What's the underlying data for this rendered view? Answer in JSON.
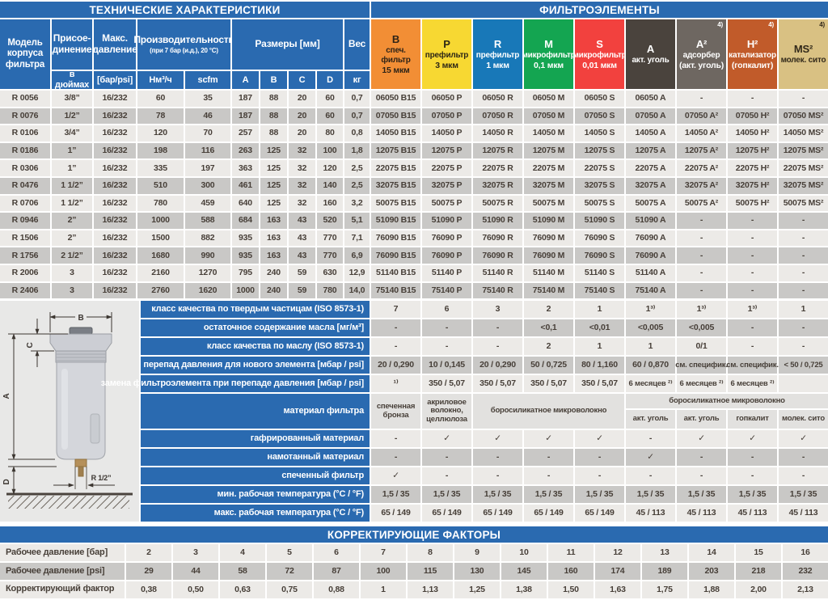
{
  "banners": {
    "tech": "ТЕХНИЧЕСКИЕ ХАРАКТЕРИСТИКИ",
    "elements": "ФИЛЬТРОЭЛЕМЕНТЫ",
    "correction": "КОРРЕКТИРУЮЩИЕ ФАКТОРЫ"
  },
  "colors": {
    "accent_blue": "#2a6ab0",
    "row_light": "#eceae7",
    "row_dark": "#c9c8c6",
    "row_material": "#e2e1df",
    "ink": "#443c34"
  },
  "tech_header": {
    "model": "Модель корпуса фильтра",
    "connection": "Присое- динение",
    "connection_sub": "в дюймах",
    "pressure": "Макс. давление",
    "pressure_sub": "[бар/psi]",
    "capacity": "Производительность",
    "capacity_note": "(при 7 бар (и.д.), 20 °C)",
    "capacity_sub1": "Нм³/ч",
    "capacity_sub2": "scfm",
    "dimensions": "Размеры [мм]",
    "dim_sub_a": "A",
    "dim_sub_b": "B",
    "dim_sub_c": "C",
    "dim_sub_d": "D",
    "weight": "Вес",
    "weight_sub": "кг"
  },
  "element_columns": [
    {
      "code": "B",
      "line1": "спеч. фильтр",
      "line2": "15 мкм",
      "note": "",
      "bg": "#f28e35",
      "fg": "#2e2317"
    },
    {
      "code": "P",
      "line1": "префильтр",
      "line2": "3 мкм",
      "note": "",
      "bg": "#f7d832",
      "fg": "#2e2716"
    },
    {
      "code": "R",
      "line1": "префильтр",
      "line2": "1 мкм",
      "note": "",
      "bg": "#1878b8",
      "fg": "#ffffff"
    },
    {
      "code": "M",
      "line1": "микрофильтр",
      "line2": "0,1 мкм",
      "note": "",
      "bg": "#14a551",
      "fg": "#ffffff"
    },
    {
      "code": "S",
      "line1": "микрофильтр",
      "line2": "0,01 мкм",
      "note": "",
      "bg": "#f2413e",
      "fg": "#ffffff"
    },
    {
      "code": "A",
      "line1": "акт. уголь",
      "line2": "",
      "note": "",
      "bg": "#4a433d",
      "fg": "#ffffff"
    },
    {
      "code": "A²",
      "line1": "адсорбер",
      "line2": "(акт. уголь)",
      "note": "4)",
      "bg": "#6e6761",
      "fg": "#ffffff"
    },
    {
      "code": "H²",
      "line1": "катализатор",
      "line2": "(гопкалит)",
      "note": "4)",
      "bg": "#c15b2a",
      "fg": "#ffffff"
    },
    {
      "code": "MS²",
      "line1": "молек. сито",
      "line2": "",
      "note": "4)",
      "bg": "#d9c183",
      "fg": "#32291a"
    }
  ],
  "rows": [
    {
      "model": "R 0056",
      "specs": [
        "3/8”",
        "16/232",
        "60",
        "35",
        "187",
        "88",
        "20",
        "60",
        "0,7"
      ],
      "codes": [
        "06050 B15",
        "06050 P",
        "06050 R",
        "06050 M",
        "06050 S",
        "06050 A",
        "-",
        "-",
        "-"
      ]
    },
    {
      "model": "R 0076",
      "specs": [
        "1/2”",
        "16/232",
        "78",
        "46",
        "187",
        "88",
        "20",
        "60",
        "0,7"
      ],
      "codes": [
        "07050 B15",
        "07050 P",
        "07050 R",
        "07050 M",
        "07050 S",
        "07050 A",
        "07050 A²",
        "07050 H²",
        "07050 MS²"
      ]
    },
    {
      "model": "R 0106",
      "specs": [
        "3/4”",
        "16/232",
        "120",
        "70",
        "257",
        "88",
        "20",
        "80",
        "0,8"
      ],
      "codes": [
        "14050 B15",
        "14050 P",
        "14050 R",
        "14050 M",
        "14050 S",
        "14050 A",
        "14050 A²",
        "14050 H²",
        "14050 MS²"
      ]
    },
    {
      "model": "R 0186",
      "specs": [
        "1”",
        "16/232",
        "198",
        "116",
        "263",
        "125",
        "32",
        "100",
        "1,8"
      ],
      "codes": [
        "12075 B15",
        "12075 P",
        "12075 R",
        "12075 M",
        "12075 S",
        "12075 A",
        "12075 A²",
        "12075 H²",
        "12075 MS²"
      ]
    },
    {
      "model": "R 0306",
      "specs": [
        "1”",
        "16/232",
        "335",
        "197",
        "363",
        "125",
        "32",
        "120",
        "2,5"
      ],
      "codes": [
        "22075 B15",
        "22075 P",
        "22075 R",
        "22075 M",
        "22075 S",
        "22075 A",
        "22075 A²",
        "22075 H²",
        "22075 MS²"
      ]
    },
    {
      "model": "R 0476",
      "specs": [
        "1 1/2”",
        "16/232",
        "510",
        "300",
        "461",
        "125",
        "32",
        "140",
        "2,5"
      ],
      "codes": [
        "32075 B15",
        "32075 P",
        "32075 R",
        "32075 M",
        "32075 S",
        "32075 A",
        "32075 A²",
        "32075 H²",
        "32075 MS²"
      ]
    },
    {
      "model": "R 0706",
      "specs": [
        "1 1/2”",
        "16/232",
        "780",
        "459",
        "640",
        "125",
        "32",
        "160",
        "3,2"
      ],
      "codes": [
        "50075 B15",
        "50075 P",
        "50075 R",
        "50075 M",
        "50075 S",
        "50075 A",
        "50075 A²",
        "50075 H²",
        "50075 MS²"
      ]
    },
    {
      "model": "R 0946",
      "specs": [
        "2”",
        "16/232",
        "1000",
        "588",
        "684",
        "163",
        "43",
        "520",
        "5,1"
      ],
      "codes": [
        "51090 B15",
        "51090 P",
        "51090 R",
        "51090 M",
        "51090 S",
        "51090 A",
        "-",
        "-",
        "-"
      ]
    },
    {
      "model": "R 1506",
      "specs": [
        "2”",
        "16/232",
        "1500",
        "882",
        "935",
        "163",
        "43",
        "770",
        "7,1"
      ],
      "codes": [
        "76090 B15",
        "76090 P",
        "76090 R",
        "76090 M",
        "76090 S",
        "76090 A",
        "-",
        "-",
        "-"
      ]
    },
    {
      "model": "R 1756",
      "specs": [
        "2 1/2”",
        "16/232",
        "1680",
        "990",
        "935",
        "163",
        "43",
        "770",
        "6,9"
      ],
      "codes": [
        "76090 B15",
        "76090 P",
        "76090 R",
        "76090 M",
        "76090 S",
        "76090 A",
        "-",
        "-",
        "-"
      ]
    },
    {
      "model": "R 2006",
      "specs": [
        "3",
        "16/232",
        "2160",
        "1270",
        "795",
        "240",
        "59",
        "630",
        "12,9"
      ],
      "codes": [
        "51140 B15",
        "51140 P",
        "51140 R",
        "51140 M",
        "51140 S",
        "51140 A",
        "-",
        "-",
        "-"
      ]
    },
    {
      "model": "R 2406",
      "specs": [
        "3",
        "16/232",
        "2760",
        "1620",
        "1000",
        "240",
        "59",
        "780",
        "14,0"
      ],
      "codes": [
        "75140 B15",
        "75140 P",
        "75140 R",
        "75140 M",
        "75140 S",
        "75140 A",
        "-",
        "-",
        "-"
      ]
    }
  ],
  "properties": [
    {
      "label": "класс качества по твердым частицам (ISO 8573-1)",
      "values": [
        "7",
        "6",
        "3",
        "2",
        "1",
        "1³⁾",
        "1³⁾",
        "1³⁾",
        "1"
      ]
    },
    {
      "label": "остаточное содержание масла [мг/м³]",
      "values": [
        "-",
        "-",
        "-",
        "<0,1",
        "<0,01",
        "<0,005",
        "<0,005",
        "-",
        "-"
      ]
    },
    {
      "label": "класс качества по маслу (ISO 8573-1)",
      "values": [
        "-",
        "-",
        "-",
        "2",
        "1",
        "1",
        "0/1",
        "-",
        "-"
      ]
    },
    {
      "label": "перепад давления для нового элемента [мбар / psi]",
      "values": [
        "20 / 0,290",
        "10 / 0,145",
        "20 / 0,290",
        "50 / 0,725",
        "80 / 1,160",
        "60 / 0,870",
        "см. специфик.",
        "см. специфик.",
        "< 50 / 0,725"
      ]
    },
    {
      "label": "замена фильтроэлемента при перепаде давления [мбар / psi]",
      "values": [
        "¹⁾",
        "350 / 5,07",
        "350 / 5,07",
        "350 / 5,07",
        "350 / 5,07",
        "6 месяцев ²⁾",
        "6 месяцев ²⁾",
        "6 месяцев ²⁾",
        ""
      ]
    },
    {
      "label": "материал фильтра",
      "type": "material"
    },
    {
      "label": "гафрированный материал",
      "values": [
        "-",
        "✓",
        "✓",
        "✓",
        "✓",
        "-",
        "✓",
        "✓",
        "✓"
      ]
    },
    {
      "label": "намотанный материал",
      "values": [
        "-",
        "-",
        "-",
        "-",
        "-",
        "✓",
        "-",
        "-",
        "-"
      ]
    },
    {
      "label": "спеченный фильтр",
      "values": [
        "✓",
        "-",
        "-",
        "-",
        "-",
        "-",
        "-",
        "-",
        "-"
      ]
    },
    {
      "label": "мин. рабочая температура (°C / °F)",
      "values": [
        "1,5 / 35",
        "1,5 / 35",
        "1,5 / 35",
        "1,5 / 35",
        "1,5 / 35",
        "1,5 / 35",
        "1,5 / 35",
        "1,5 / 35",
        "1,5 / 35"
      ]
    },
    {
      "label": "макс. рабочая температура  (°C / °F)",
      "values": [
        "65 / 149",
        "65 / 149",
        "65 / 149",
        "65 / 149",
        "65 / 149",
        "45 / 113",
        "45 / 113",
        "45 / 113",
        "45 / 113"
      ]
    }
  ],
  "material": {
    "b": "спеченная бронза",
    "p": "акриловое волокно, целлюлоза",
    "rms": "боросиликатное микроволокно",
    "right_top": "боросиликатное микроволокно",
    "right_cells": [
      "акт. уголь",
      "акт. уголь",
      "гопкалит",
      "молек. сито"
    ]
  },
  "correction": {
    "rows": [
      {
        "label": "Рабочее давление [бар]",
        "values": [
          "2",
          "3",
          "4",
          "5",
          "6",
          "7",
          "8",
          "9",
          "10",
          "11",
          "12",
          "13",
          "14",
          "15",
          "16"
        ]
      },
      {
        "label": "Рабочее давление [psi]",
        "values": [
          "29",
          "44",
          "58",
          "72",
          "87",
          "100",
          "115",
          "130",
          "145",
          "160",
          "174",
          "189",
          "203",
          "218",
          "232"
        ]
      },
      {
        "label": "Корректирующий фактор",
        "values": [
          "0,38",
          "0,50",
          "0,63",
          "0,75",
          "0,88",
          "1",
          "1,13",
          "1,25",
          "1,38",
          "1,50",
          "1,63",
          "1,75",
          "1,88",
          "2,00",
          "2,13"
        ]
      }
    ]
  },
  "drawing": {
    "dim_a": "A",
    "dim_b": "B",
    "dim_c": "C",
    "dim_d": "D",
    "thread": "R 1/2”"
  }
}
